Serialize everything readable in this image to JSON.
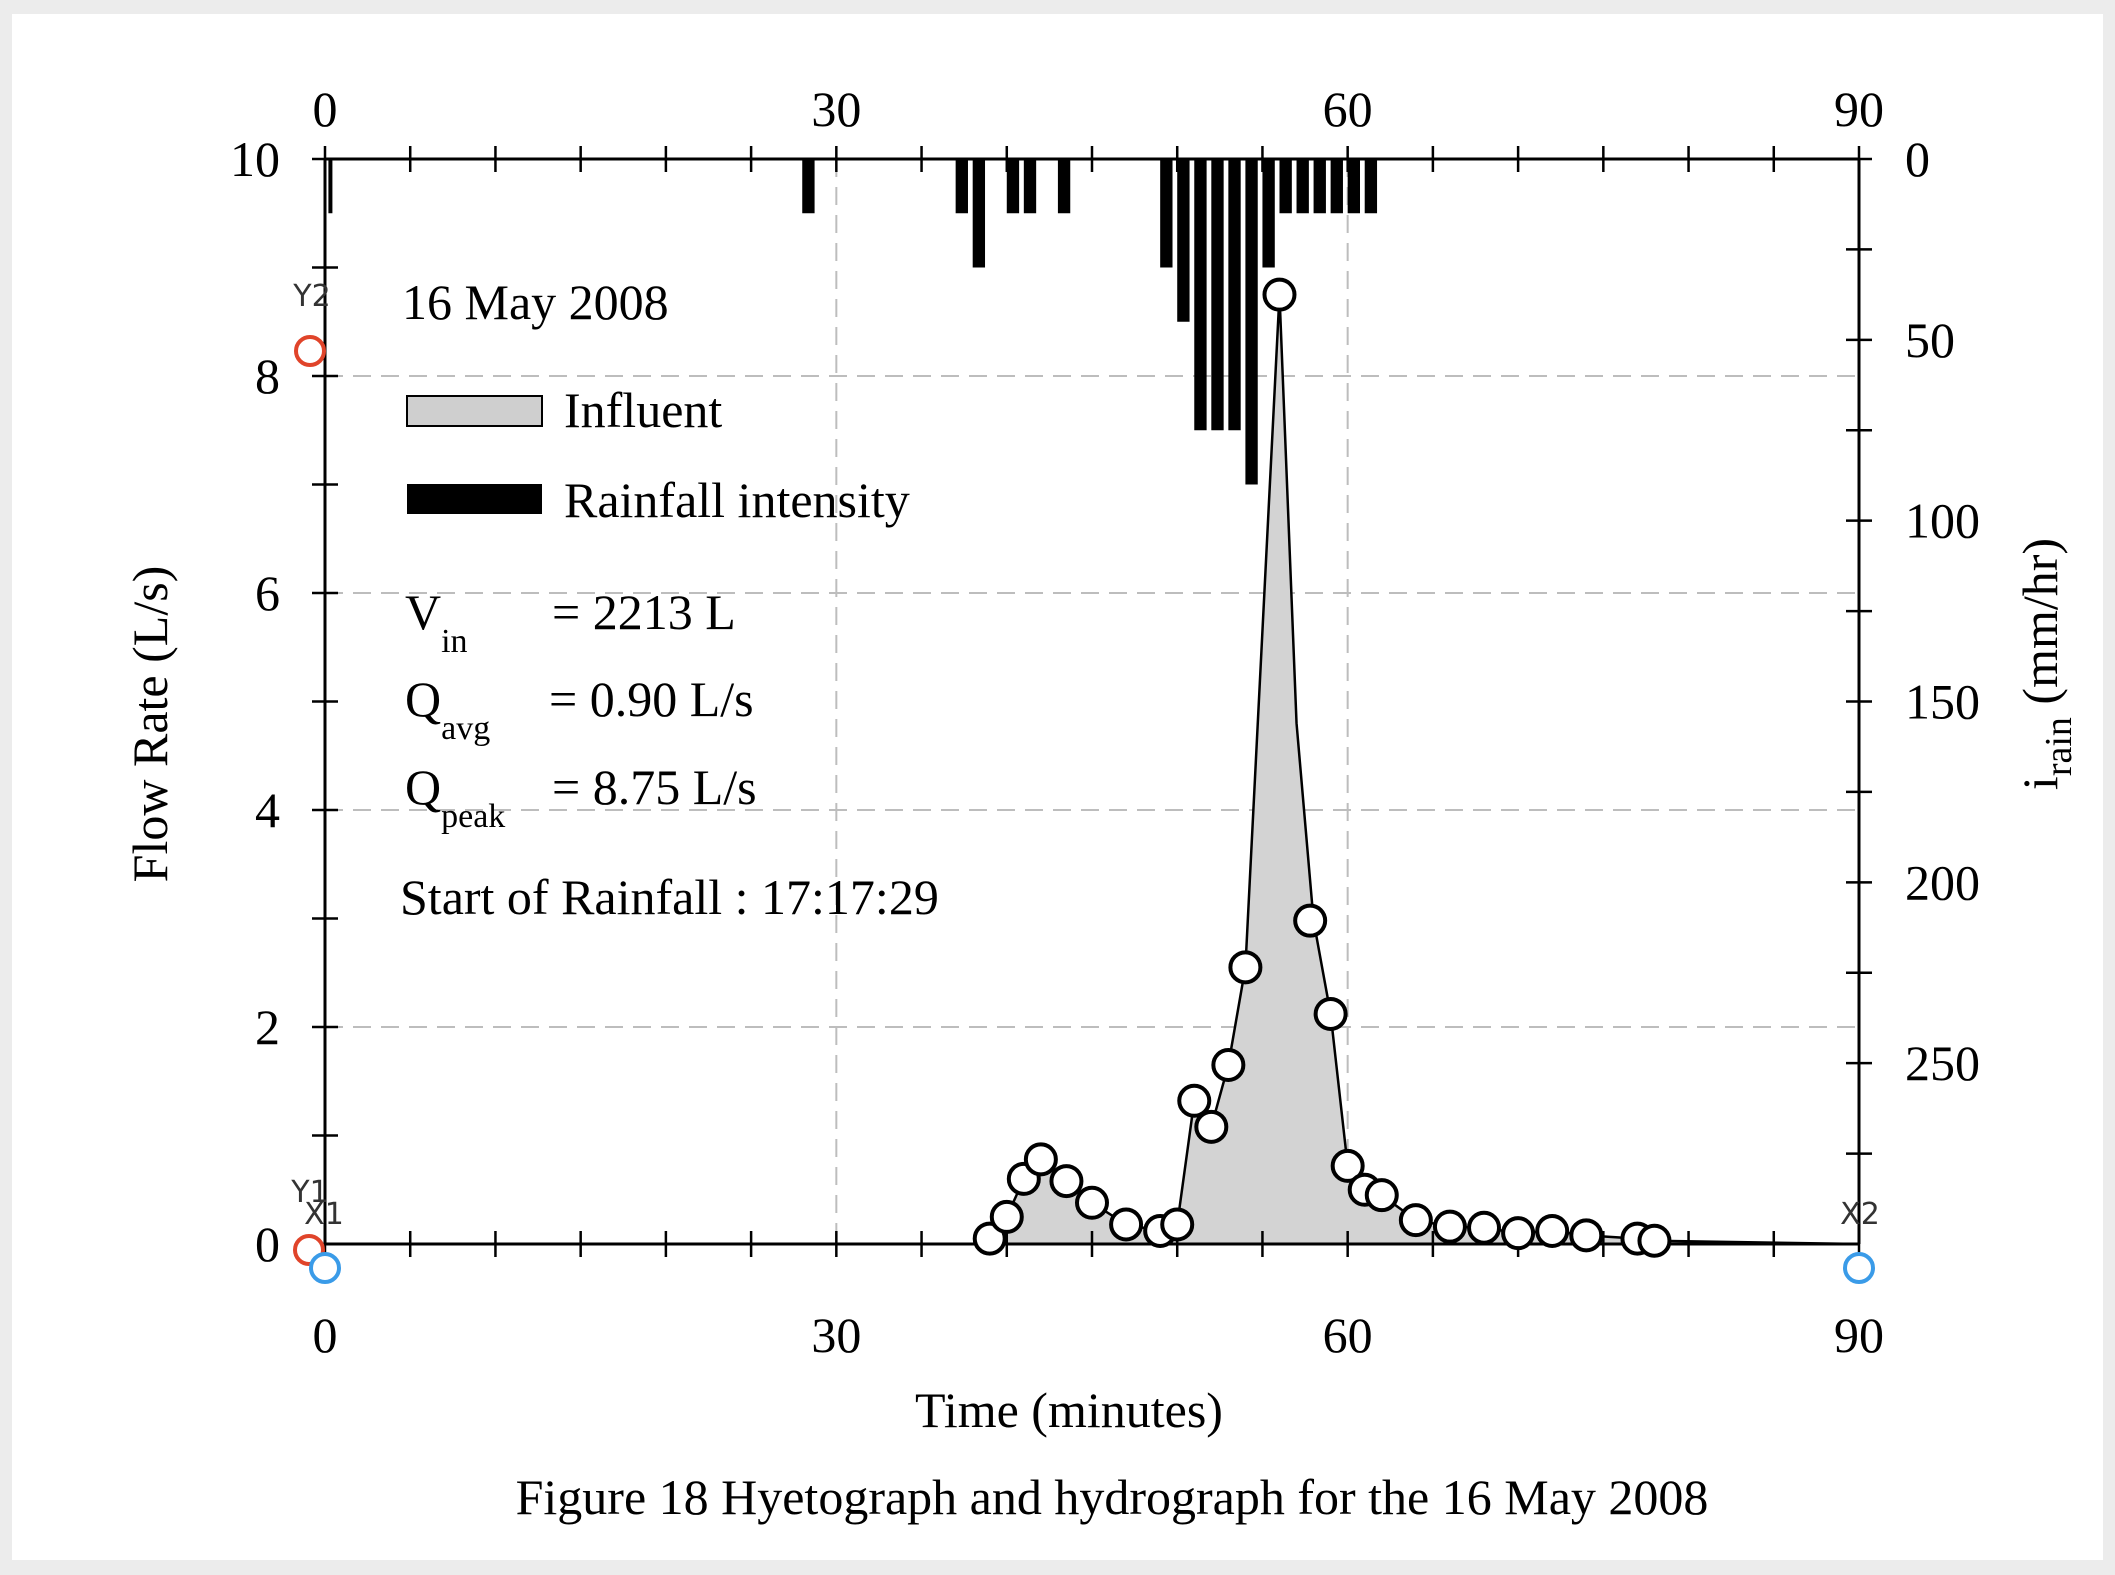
{
  "chart_data": {
    "type": "line",
    "caption": "Figure 18 Hyetograph and hydrograph for the 16 May 2008",
    "xlabel": "Time (minutes)",
    "ylabel": "Flow Rate (L/s)",
    "y2label_main": "i",
    "y2label_sub": "rain",
    "y2label_unit": " (mm/hr)",
    "xlim": [
      0,
      90
    ],
    "ylim": [
      0,
      10
    ],
    "y2lim": [
      0,
      300
    ],
    "y2_inverted": true,
    "x_ticks": [
      "0",
      "30",
      "60",
      "90"
    ],
    "x_ticks_values": [
      0,
      30,
      60,
      90
    ],
    "y_ticks": [
      "0",
      "2",
      "4",
      "6",
      "8",
      "10"
    ],
    "y_ticks_values": [
      0,
      2,
      4,
      6,
      8,
      10
    ],
    "y2_ticks": [
      "0",
      "50",
      "100",
      "150",
      "200",
      "250"
    ],
    "y2_ticks_values": [
      0,
      50,
      100,
      150,
      200,
      250
    ],
    "grid": true,
    "event_label": "16 May 2008",
    "legend": {
      "placement": "top-left",
      "entries": [
        {
          "label": "Influent",
          "swatch": "#cfcfcf"
        },
        {
          "label": "Rainfall intensity",
          "swatch": "#000000"
        }
      ]
    },
    "stats": [
      {
        "main": "V",
        "sub": "in",
        "value": "= 2213 L"
      },
      {
        "main": "Q",
        "sub": "avg",
        "value": "= 0.90 L/s"
      },
      {
        "main": "Q",
        "sub": "peak",
        "value": "= 8.75 L/s"
      }
    ],
    "start_text": "Start of Rainfall : 17:17:29",
    "series": [
      {
        "name": "Influent",
        "type": "area",
        "fill": "#d3d3d3",
        "x": [
          0,
          38,
          39,
          40,
          41,
          42,
          43.5,
          45,
          47,
          49,
          50,
          51,
          52,
          53,
          54,
          56,
          57,
          58,
          59,
          60,
          61,
          62,
          64,
          66,
          68,
          70,
          72,
          74,
          77,
          78,
          90
        ],
        "y": [
          0,
          0,
          0.05,
          0.25,
          0.6,
          0.78,
          0.58,
          0.38,
          0.18,
          0.12,
          0.18,
          1.32,
          1.08,
          1.65,
          2.55,
          8.75,
          4.8,
          2.98,
          2.12,
          0.72,
          0.5,
          0.45,
          0.22,
          0.16,
          0.15,
          0.1,
          0.12,
          0.08,
          0.05,
          0.03,
          0
        ]
      },
      {
        "name": "markers",
        "type": "scatter",
        "x": [
          39,
          40,
          41,
          42,
          43.5,
          45,
          47,
          49,
          50,
          51,
          52,
          53,
          54,
          56,
          57.8,
          59,
          60,
          61,
          62,
          64,
          66,
          68,
          70,
          72,
          74,
          77,
          78
        ],
        "y": [
          0.05,
          0.25,
          0.6,
          0.78,
          0.58,
          0.38,
          0.18,
          0.12,
          0.18,
          1.32,
          1.08,
          1.65,
          2.55,
          8.75,
          2.98,
          2.12,
          0.72,
          0.5,
          0.45,
          0.22,
          0.16,
          0.15,
          0.1,
          0.12,
          0.08,
          0.05,
          0.03
        ]
      },
      {
        "name": "Rainfall intensity",
        "type": "bar",
        "bar_width_min": 0.9,
        "x": [
          0.2,
          28,
          37,
          38,
          40,
          41,
          43,
          49,
          50,
          51,
          52,
          53,
          54,
          55,
          56,
          57,
          58,
          59,
          60,
          61
        ],
        "y": [
          15,
          15,
          15,
          30,
          15,
          15,
          15,
          30,
          45,
          75,
          75,
          75,
          90,
          30,
          15,
          15,
          15,
          15,
          15,
          15
        ]
      }
    ],
    "calibration_markers": [
      "Y2",
      "Y1",
      "X1",
      "X2"
    ]
  }
}
